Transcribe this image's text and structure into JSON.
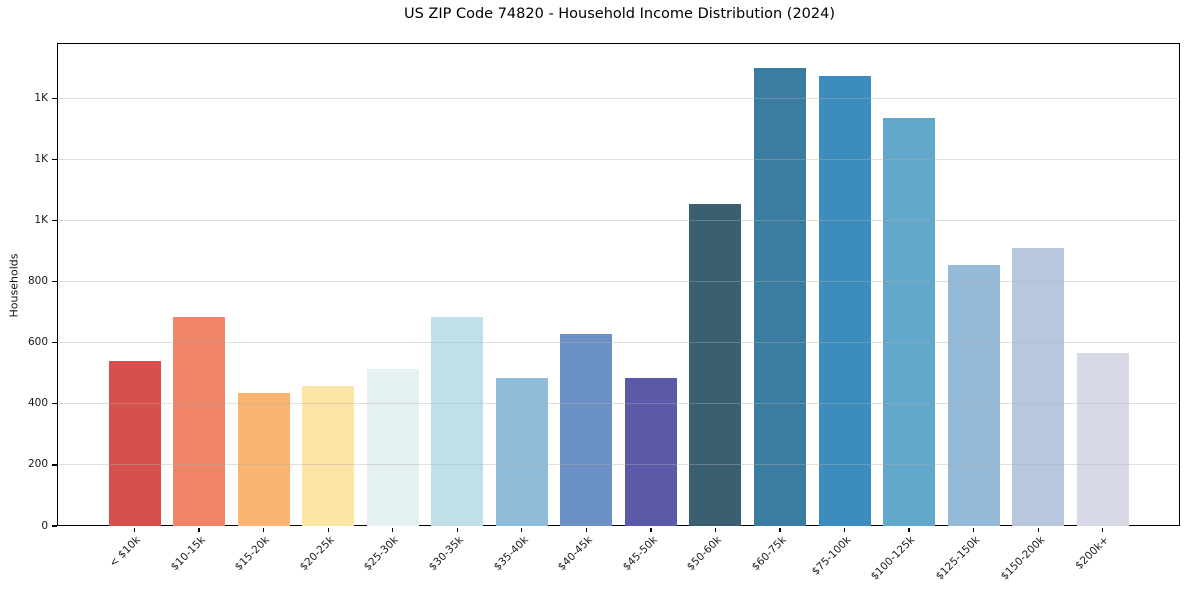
{
  "chart_data": {
    "type": "bar",
    "title": "US ZIP Code 74820 - Household Income Distribution (2024)",
    "xlabel": "",
    "ylabel": "Households",
    "categories": [
      "< $10k",
      "$10-15k",
      "$15-20k",
      "$20-25k",
      "$25-30k",
      "$30-35k",
      "$35-40k",
      "$40-45k",
      "$45-50k",
      "$50-60k",
      "$60-75k",
      "$75-100k",
      "$100-125k",
      "$125-150k",
      "$150-200k",
      "$200k+"
    ],
    "values": [
      540,
      685,
      435,
      460,
      515,
      685,
      485,
      630,
      485,
      1055,
      1500,
      1475,
      1335,
      855,
      910,
      565
    ],
    "bar_colors": [
      "#d6504e",
      "#f18568",
      "#f9b472",
      "#fce5a4",
      "#e5f1f1",
      "#bfe0e9",
      "#90bcd9",
      "#6c92c5",
      "#5b59a8",
      "#3a5f71",
      "#3a7da1",
      "#3d8cbe",
      "#61a8ca",
      "#94bad8",
      "#b8c7de",
      "#d8d9e6"
    ],
    "ylim": [
      0,
      1575
    ],
    "yticks": [
      {
        "value": 0,
        "label": "0"
      },
      {
        "value": 200,
        "label": "200"
      },
      {
        "value": 400,
        "label": "400"
      },
      {
        "value": 600,
        "label": "600"
      },
      {
        "value": 800,
        "label": "800"
      },
      {
        "value": 1000,
        "label": "1K"
      },
      {
        "value": 1200,
        "label": "1K"
      },
      {
        "value": 1400,
        "label": "1K"
      }
    ],
    "xtick_rotation_deg": 45,
    "grid": {
      "axis": "y",
      "color": "#b0b0b0",
      "alpha": 0.4,
      "drawn_above_bars": true
    },
    "legend": "none",
    "background_color": "#ffffff",
    "spine_color": "#000000"
  }
}
